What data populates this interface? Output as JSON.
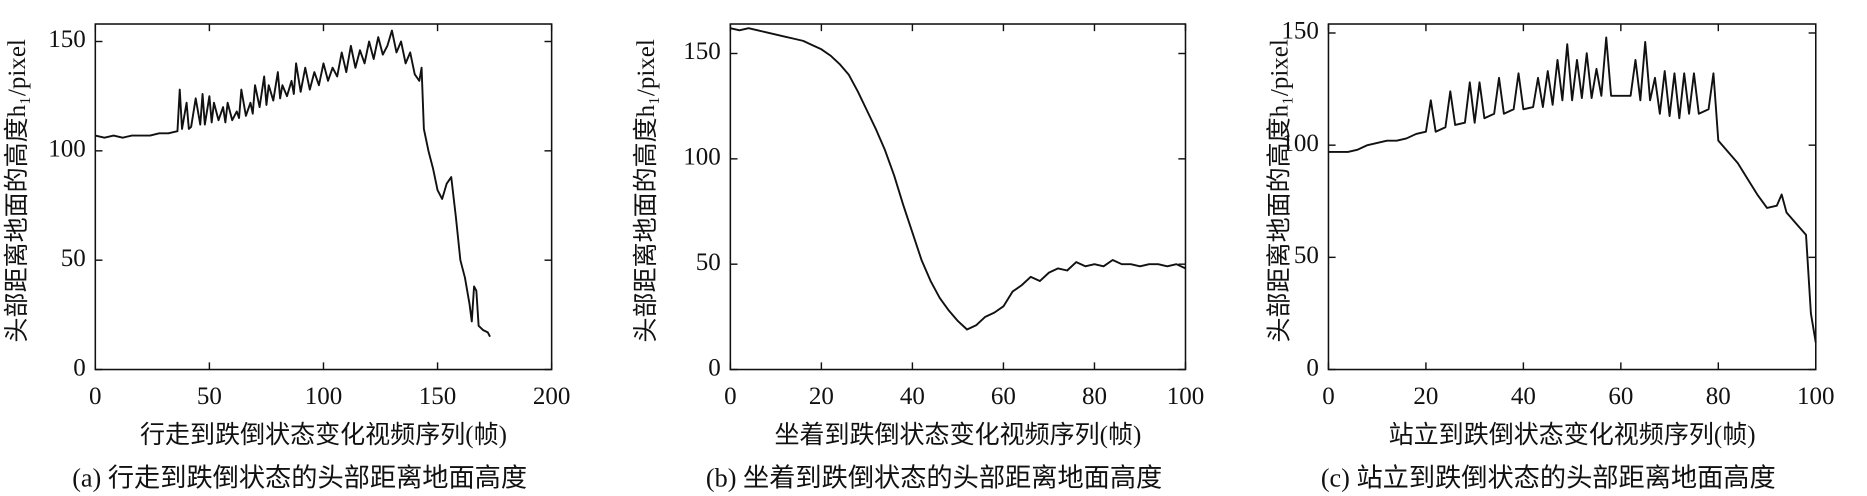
{
  "chart_data": [
    {
      "type": "line",
      "color": "#111111",
      "ylabel": "头部距离地面的高度h₁/pixel",
      "xlabel": "行走到跌倒状态变化视频序列(帧)",
      "caption": "(a) 行走到跌倒状态的头部距离地面高度",
      "xlim": [
        0,
        200
      ],
      "xticks": [
        0,
        50,
        100,
        150,
        200
      ],
      "ylim": [
        0,
        158
      ],
      "yticks": [
        0,
        50,
        100,
        150
      ],
      "x": [
        0,
        4,
        8,
        12,
        16,
        20,
        24,
        28,
        32,
        36,
        37,
        38,
        40,
        41,
        42,
        44,
        46,
        47,
        48,
        50,
        51,
        52,
        54,
        56,
        57,
        58,
        60,
        62,
        63,
        64,
        66,
        68,
        69,
        70,
        72,
        74,
        75,
        76,
        78,
        80,
        81,
        82,
        84,
        86,
        87,
        88,
        90,
        92,
        94,
        96,
        98,
        100,
        102,
        104,
        106,
        108,
        110,
        112,
        114,
        116,
        118,
        120,
        122,
        124,
        126,
        128,
        130,
        132,
        134,
        136,
        138,
        140,
        142,
        143,
        144,
        146,
        148,
        150,
        152,
        154,
        156,
        158,
        160,
        162,
        164,
        165,
        166,
        167,
        168,
        170,
        172,
        173
      ],
      "values": [
        107,
        106,
        107,
        106,
        107,
        107,
        107,
        108,
        108,
        109,
        128,
        110,
        122,
        110,
        111,
        124,
        112,
        126,
        112,
        125,
        113,
        122,
        114,
        120,
        113,
        122,
        114,
        118,
        115,
        128,
        116,
        122,
        117,
        130,
        120,
        134,
        121,
        130,
        123,
        136,
        124,
        130,
        125,
        132,
        126,
        140,
        127,
        138,
        128,
        136,
        130,
        140,
        132,
        138,
        134,
        145,
        136,
        148,
        138,
        146,
        140,
        150,
        142,
        152,
        144,
        148,
        155,
        145,
        150,
        140,
        145,
        135,
        132,
        138,
        110,
        100,
        92,
        82,
        78,
        85,
        88,
        70,
        50,
        42,
        30,
        22,
        38,
        36,
        20,
        18,
        17,
        15
      ]
    },
    {
      "type": "line",
      "color": "#111111",
      "ylabel": "头部距离地面的高度h₁/pixel",
      "xlabel": "坐着到跌倒状态变化视频序列(帧)",
      "caption": "(b) 坐着到跌倒状态的头部距离地面高度",
      "xlim": [
        0,
        100
      ],
      "xticks": [
        0,
        20,
        40,
        60,
        80,
        100
      ],
      "ylim": [
        0,
        164
      ],
      "yticks": [
        0,
        50,
        100,
        150
      ],
      "x": [
        0,
        2,
        4,
        6,
        8,
        10,
        12,
        14,
        16,
        18,
        20,
        22,
        24,
        26,
        28,
        30,
        32,
        34,
        36,
        38,
        40,
        42,
        44,
        46,
        48,
        50,
        52,
        54,
        56,
        58,
        60,
        62,
        64,
        66,
        68,
        70,
        72,
        74,
        76,
        78,
        80,
        82,
        84,
        86,
        88,
        90,
        92,
        94,
        96,
        98,
        100
      ],
      "values": [
        162,
        161,
        162,
        161,
        160,
        159,
        158,
        157,
        156,
        154,
        152,
        149,
        145,
        140,
        132,
        123,
        114,
        104,
        92,
        78,
        65,
        52,
        42,
        34,
        28,
        23,
        19,
        21,
        25,
        27,
        30,
        37,
        40,
        44,
        42,
        46,
        48,
        47,
        51,
        49,
        50,
        49,
        52,
        50,
        50,
        49,
        50,
        50,
        49,
        50,
        48
      ]
    },
    {
      "type": "line",
      "color": "#111111",
      "ylabel": "头部距离地面的高度h₁/pixel",
      "xlabel": "站立到跌倒状态变化视频序列(帧)",
      "caption": "(c) 站立到跌倒状态的头部距离地面高度",
      "xlim": [
        0,
        100
      ],
      "xticks": [
        0,
        20,
        40,
        60,
        80,
        100
      ],
      "ylim": [
        0,
        154
      ],
      "yticks": [
        0,
        50,
        100,
        150
      ],
      "x": [
        0,
        2,
        4,
        6,
        8,
        10,
        12,
        14,
        16,
        18,
        20,
        21,
        22,
        24,
        25,
        26,
        28,
        29,
        30,
        31,
        32,
        34,
        35,
        36,
        38,
        39,
        40,
        42,
        43,
        44,
        45,
        46,
        47,
        48,
        49,
        50,
        51,
        52,
        53,
        54,
        55,
        56,
        57,
        58,
        60,
        62,
        63,
        64,
        65,
        66,
        67,
        68,
        69,
        70,
        71,
        72,
        73,
        74,
        75,
        76,
        78,
        79,
        80,
        82,
        84,
        86,
        88,
        90,
        92,
        93,
        94,
        96,
        98,
        99,
        100
      ],
      "values": [
        97,
        97,
        97,
        98,
        100,
        101,
        102,
        102,
        103,
        105,
        106,
        120,
        106,
        108,
        124,
        109,
        110,
        128,
        110,
        128,
        112,
        114,
        130,
        114,
        116,
        132,
        116,
        117,
        130,
        117,
        133,
        118,
        138,
        120,
        145,
        120,
        138,
        121,
        141,
        121,
        134,
        122,
        148,
        122,
        122,
        122,
        138,
        120,
        146,
        120,
        130,
        114,
        133,
        113,
        132,
        112,
        132,
        114,
        132,
        114,
        116,
        132,
        102,
        97,
        92,
        85,
        78,
        72,
        73,
        78,
        70,
        65,
        60,
        25,
        12
      ]
    }
  ]
}
